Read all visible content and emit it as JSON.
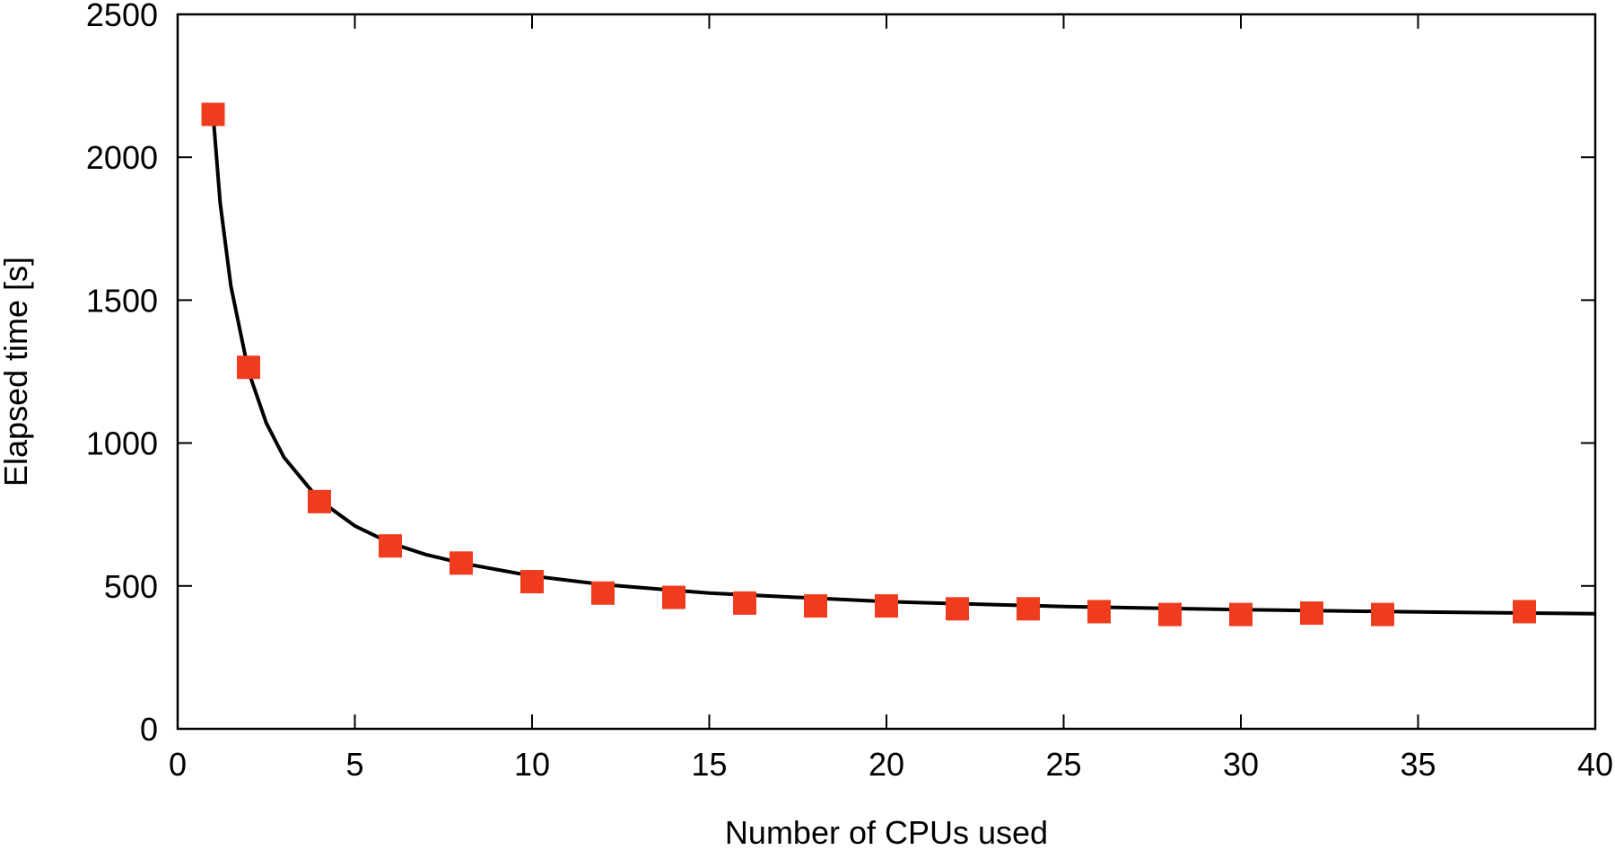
{
  "colors": {
    "marker": "#f03c1e",
    "fit_line": "#000000",
    "axis": "#000000",
    "background": "#ffffff"
  },
  "chart_data": {
    "type": "scatter",
    "title": "",
    "xlabel": "Number of CPUs used",
    "ylabel": "Elapsed time [s]",
    "xlim": [
      0,
      40
    ],
    "ylim": [
      0,
      2500
    ],
    "x_ticks": [
      0,
      5,
      10,
      15,
      20,
      25,
      30,
      35,
      40
    ],
    "y_ticks": [
      0,
      500,
      1000,
      1500,
      2000,
      2500
    ],
    "grid": false,
    "legend": "none",
    "series": [
      {
        "kind": "scatter",
        "marker": "square",
        "color": "#f03c1e",
        "x": [
          1,
          2,
          4,
          6,
          8,
          10,
          12,
          14,
          16,
          18,
          20,
          22,
          24,
          26,
          28,
          30,
          32,
          34,
          38
        ],
        "y": [
          2150,
          1265,
          795,
          640,
          580,
          515,
          475,
          460,
          440,
          430,
          430,
          420,
          420,
          410,
          400,
          400,
          405,
          400,
          410
        ]
      },
      {
        "kind": "line",
        "color": "#000000",
        "x": [
          1,
          1.2,
          1.5,
          2,
          2.5,
          3,
          4,
          5,
          6,
          7,
          8,
          10,
          12,
          15,
          20,
          25,
          30,
          35,
          40
        ],
        "y": [
          2150,
          1840,
          1550,
          1250,
          1070,
          950,
          800,
          710,
          650,
          610,
          580,
          535,
          505,
          475,
          445,
          428,
          417,
          409,
          403
        ]
      }
    ]
  }
}
